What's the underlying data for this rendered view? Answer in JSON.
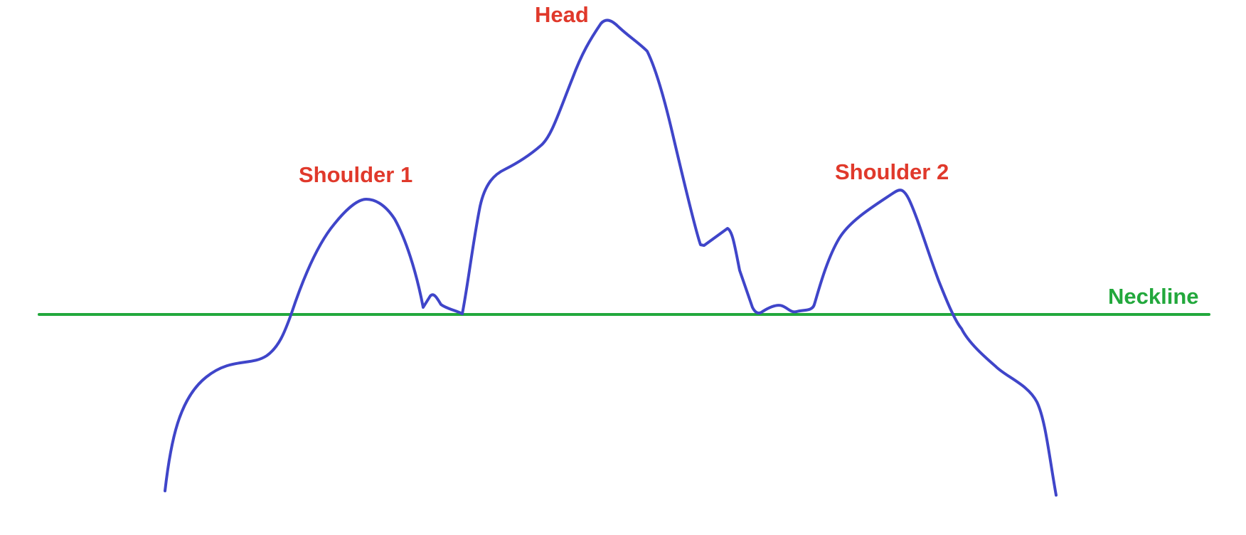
{
  "labels": {
    "head": "Head",
    "shoulder_1": "Shoulder 1",
    "shoulder_2": "Shoulder 2",
    "neckline": "Neckline"
  },
  "colors": {
    "price_line": "#3f45c9",
    "neckline": "#22a83c",
    "labels": "#e0392b",
    "neckline_label": "#22a83c",
    "background": "#ffffff"
  }
}
